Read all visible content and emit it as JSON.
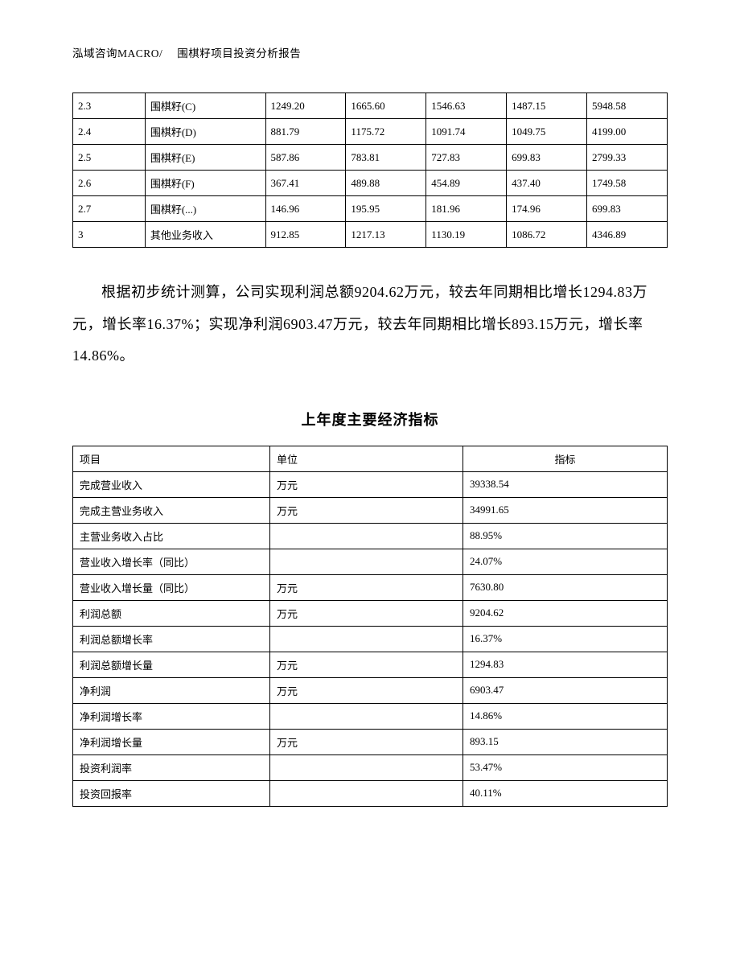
{
  "header": {
    "left": "泓域咨询MACRO/",
    "right": "围棋籽项目投资分析报告"
  },
  "table1": {
    "rows": [
      {
        "id": "2.3",
        "name": "围棋籽(C)",
        "v1": "1249.20",
        "v2": "1665.60",
        "v3": "1546.63",
        "v4": "1487.15",
        "v5": "5948.58"
      },
      {
        "id": "2.4",
        "name": "围棋籽(D)",
        "v1": "881.79",
        "v2": "1175.72",
        "v3": "1091.74",
        "v4": "1049.75",
        "v5": "4199.00"
      },
      {
        "id": "2.5",
        "name": "围棋籽(E)",
        "v1": "587.86",
        "v2": "783.81",
        "v3": "727.83",
        "v4": "699.83",
        "v5": "2799.33"
      },
      {
        "id": "2.6",
        "name": "围棋籽(F)",
        "v1": "367.41",
        "v2": "489.88",
        "v3": "454.89",
        "v4": "437.40",
        "v5": "1749.58"
      },
      {
        "id": "2.7",
        "name": "围棋籽(...)",
        "v1": "146.96",
        "v2": "195.95",
        "v3": "181.96",
        "v4": "174.96",
        "v5": "699.83"
      },
      {
        "id": "3",
        "name": "其他业务收入",
        "v1": "912.85",
        "v2": "1217.13",
        "v3": "1130.19",
        "v4": "1086.72",
        "v5": "4346.89"
      }
    ]
  },
  "paragraph": "根据初步统计测算，公司实现利润总额9204.62万元，较去年同期相比增长1294.83万元，增长率16.37%；实现净利润6903.47万元，较去年同期相比增长893.15万元，增长率14.86%。",
  "section_title": "上年度主要经济指标",
  "table2": {
    "headers": {
      "c0": "项目",
      "c1": "单位",
      "c2": "指标"
    },
    "rows": [
      {
        "name": "完成营业收入",
        "unit": "万元",
        "value": "39338.54"
      },
      {
        "name": "完成主营业务收入",
        "unit": "万元",
        "value": "34991.65"
      },
      {
        "name": "主营业务收入占比",
        "unit": "",
        "value": "88.95%"
      },
      {
        "name": "营业收入增长率（同比）",
        "unit": "",
        "value": "24.07%"
      },
      {
        "name": "营业收入增长量（同比）",
        "unit": "万元",
        "value": "7630.80"
      },
      {
        "name": "利润总额",
        "unit": "万元",
        "value": "9204.62"
      },
      {
        "name": "利润总额增长率",
        "unit": "",
        "value": "16.37%"
      },
      {
        "name": "利润总额增长量",
        "unit": "万元",
        "value": "1294.83"
      },
      {
        "name": "净利润",
        "unit": "万元",
        "value": "6903.47"
      },
      {
        "name": "净利润增长率",
        "unit": "",
        "value": "14.86%"
      },
      {
        "name": "净利润增长量",
        "unit": "万元",
        "value": "893.15"
      },
      {
        "name": "投资利润率",
        "unit": "",
        "value": "53.47%"
      },
      {
        "name": "投资回报率",
        "unit": "",
        "value": "40.11%"
      }
    ]
  }
}
